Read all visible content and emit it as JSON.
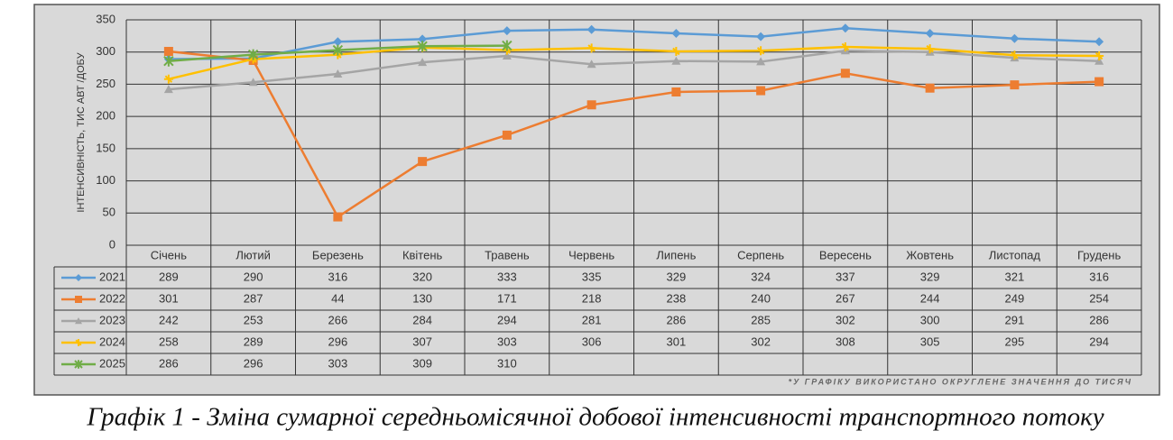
{
  "chart_data": {
    "type": "line",
    "y_label": "ІНТЕНСИВНІСТЬ, ТИС АВТ /ДОБУ",
    "note": "*У ГРАФІКУ ВИКОРИСТАНО ОКРУГЛЕНЕ ЗНАЧЕННЯ ДО ТИСЯЧ",
    "caption": "Графік 1 - Зміна сумарної середньомісячної добової інтенсивності транспортного потоку",
    "categories": [
      "Січень",
      "Лютий",
      "Березень",
      "Квітень",
      "Травень",
      "Червень",
      "Липень",
      "Серпень",
      "Вересень",
      "Жовтень",
      "Листопад",
      "Грудень"
    ],
    "series": [
      {
        "name": "2021",
        "color": "#5b9bd5",
        "marker": "diamond",
        "values": [
          289,
          290,
          316,
          320,
          333,
          335,
          329,
          324,
          337,
          329,
          321,
          316
        ]
      },
      {
        "name": "2022",
        "color": "#ed7d31",
        "marker": "square",
        "values": [
          301,
          287,
          44,
          130,
          171,
          218,
          238,
          240,
          267,
          244,
          249,
          254
        ]
      },
      {
        "name": "2023",
        "color": "#a5a5a5",
        "marker": "triangle",
        "values": [
          242,
          253,
          266,
          284,
          294,
          281,
          286,
          285,
          302,
          300,
          291,
          286
        ]
      },
      {
        "name": "2024",
        "color": "#ffc000",
        "marker": "star",
        "values": [
          258,
          289,
          296,
          307,
          303,
          306,
          301,
          302,
          308,
          305,
          295,
          294
        ]
      },
      {
        "name": "2025",
        "color": "#70ad47",
        "marker": "asterisk",
        "values": [
          286,
          296,
          303,
          309,
          310,
          null,
          null,
          null,
          null,
          null,
          null,
          null
        ]
      }
    ],
    "ylim": [
      0,
      350
    ],
    "yticks": [
      0,
      50,
      100,
      150,
      200,
      250,
      300,
      350
    ],
    "grid": true
  }
}
